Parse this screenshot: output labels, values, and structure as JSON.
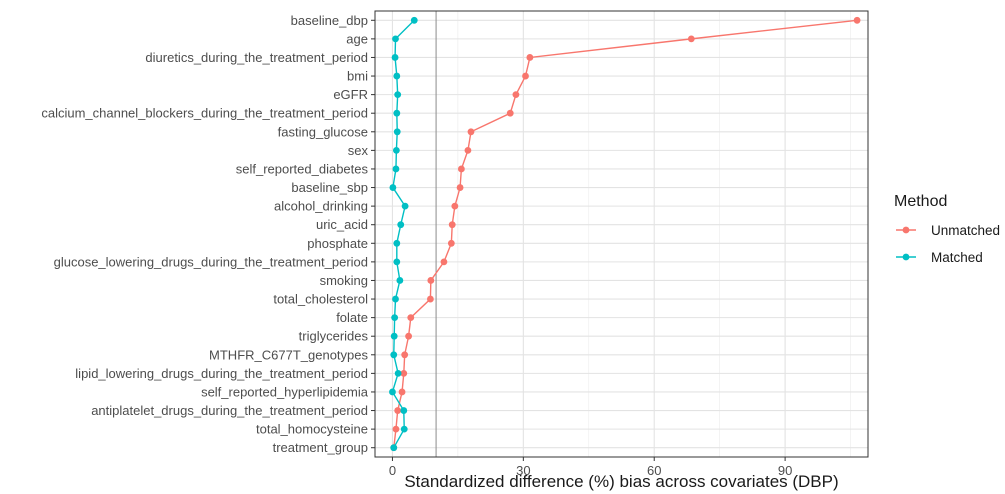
{
  "chart_data": {
    "type": "line",
    "title": "",
    "xlabel": "Standardized difference (%) bias across covariates (DBP)",
    "ylabel": "",
    "xlim": [
      -4,
      109
    ],
    "xticks": [
      0,
      30,
      60,
      90
    ],
    "reference_line_x": 10,
    "grid": true,
    "legend": {
      "title": "Method",
      "placement": "right"
    },
    "categories": [
      "baseline_dbp",
      "age",
      "diuretics_during_the_treatment_period",
      "bmi",
      "eGFR",
      "calcium_channel_blockers_during_the_treatment_period",
      "fasting_glucose",
      "sex",
      "self_reported_diabetes",
      "baseline_sbp",
      "alcohol_drinking",
      "uric_acid",
      "phosphate",
      "glucose_lowering_drugs_during_the_treatment_period",
      "smoking",
      "total_cholesterol",
      "folate",
      "triglycerides",
      "MTHFR_C677T_genotypes",
      "lipid_lowering_drugs_during_the_treatment_period",
      "self_reported_hyperlipidemia",
      "antiplatelet_drugs_during_the_treatment_period",
      "total_homocysteine",
      "treatment_group"
    ],
    "series": [
      {
        "name": "Unmatched",
        "color": "#F8766D",
        "values": [
          106.5,
          68.5,
          31.5,
          30.5,
          28.3,
          27.0,
          18.0,
          17.3,
          15.8,
          15.5,
          14.3,
          13.7,
          13.5,
          11.8,
          8.8,
          8.7,
          4.2,
          3.7,
          2.8,
          2.6,
          2.2,
          1.2,
          0.8,
          0.3
        ]
      },
      {
        "name": "Matched",
        "color": "#00BFC4",
        "values": [
          5.0,
          0.7,
          0.6,
          1.0,
          1.2,
          1.0,
          1.1,
          0.9,
          0.8,
          0.1,
          2.9,
          1.9,
          1.0,
          1.0,
          1.7,
          0.7,
          0.5,
          0.4,
          0.3,
          1.3,
          0.0,
          2.6,
          2.7,
          0.3
        ]
      }
    ]
  }
}
